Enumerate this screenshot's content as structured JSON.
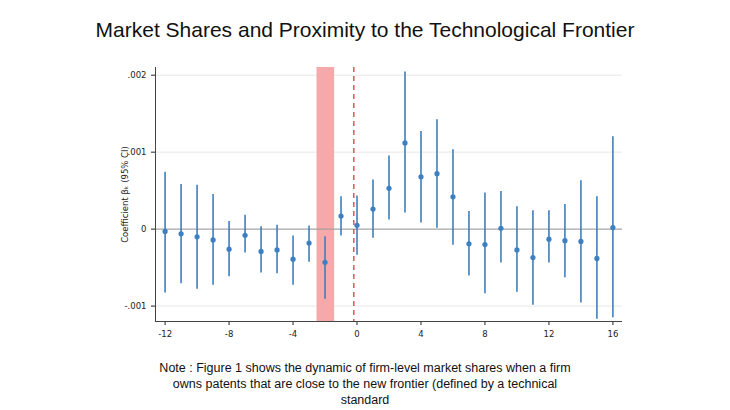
{
  "chart_data": {
    "type": "scatter",
    "title": "Market Shares and Proximity to the Technological Frontier",
    "note": "Note : Figure 1 shows the dynamic of firm-level market shares when a firm owns patents that are close to the new frontier (defined by a technical standard",
    "y_label": "Coefficient βₖ (95% CI)",
    "x": [
      -12,
      -11,
      -10,
      -9,
      -8,
      -7,
      -6,
      -5,
      -4,
      -3,
      -2,
      -1,
      0,
      1,
      2,
      3,
      4,
      5,
      6,
      7,
      8,
      9,
      10,
      11,
      12,
      13,
      14,
      15,
      16
    ],
    "values": [
      -3e-05,
      -6e-05,
      -0.0001,
      -0.00014,
      -0.00026,
      -8e-05,
      -0.00029,
      -0.00027,
      -0.00039,
      -0.00018,
      -0.00043,
      0.00017,
      5e-05,
      0.00026,
      0.00053,
      0.00112,
      0.00068,
      0.00072,
      0.00042,
      -0.00019,
      -0.0002,
      1e-05,
      -0.00027,
      -0.00037,
      -0.00013,
      -0.00015,
      -0.00016,
      -0.00038,
      2e-05
    ],
    "ci_lower": [
      -0.00083,
      -0.00071,
      -0.00078,
      -0.00073,
      -0.00062,
      -0.00031,
      -0.00057,
      -0.00058,
      -0.00073,
      -0.00043,
      -0.00091,
      -9e-05,
      -0.00034,
      -0.00012,
      0.00012,
      0.00021,
      8e-05,
      1e-05,
      -0.00021,
      -0.00061,
      -0.00084,
      -0.00044,
      -0.00082,
      -0.00099,
      -0.00044,
      -0.00063,
      -0.00096,
      -0.00117,
      -0.00115
    ],
    "ci_upper": [
      0.00074,
      0.00058,
      0.00057,
      0.00045,
      0.0001,
      0.00018,
      3e-05,
      5e-05,
      -9e-05,
      4e-05,
      -0.0001,
      0.00042,
      0.00043,
      0.00064,
      0.00095,
      0.00204,
      0.00127,
      0.00142,
      0.00103,
      0.00023,
      0.00047,
      0.00049,
      0.00029,
      0.00024,
      0.00024,
      0.00032,
      0.00063,
      0.00042,
      0.0012
    ],
    "color": "#3d7fc0",
    "marker": "circle",
    "xlim": [
      -12.6,
      16.6
    ],
    "xticks": [
      -12,
      -8,
      -4,
      0,
      4,
      8,
      12,
      16
    ],
    "ylim": [
      -0.0012,
      0.0021
    ],
    "yticks": [
      {
        "value": -0.001,
        "label": "-.001"
      },
      {
        "value": 0,
        "label": "0"
      },
      {
        "value": 0.001,
        "label": ".001"
      },
      {
        "value": 0.002,
        "label": ".002"
      }
    ],
    "grid": true,
    "hline": 0,
    "shaded_region": [
      -2.5,
      -1.4
    ],
    "shaded_color": "#f6a9aa",
    "vline": -0.2,
    "vline_color": "#e0393e",
    "vline_style": "dashed"
  }
}
